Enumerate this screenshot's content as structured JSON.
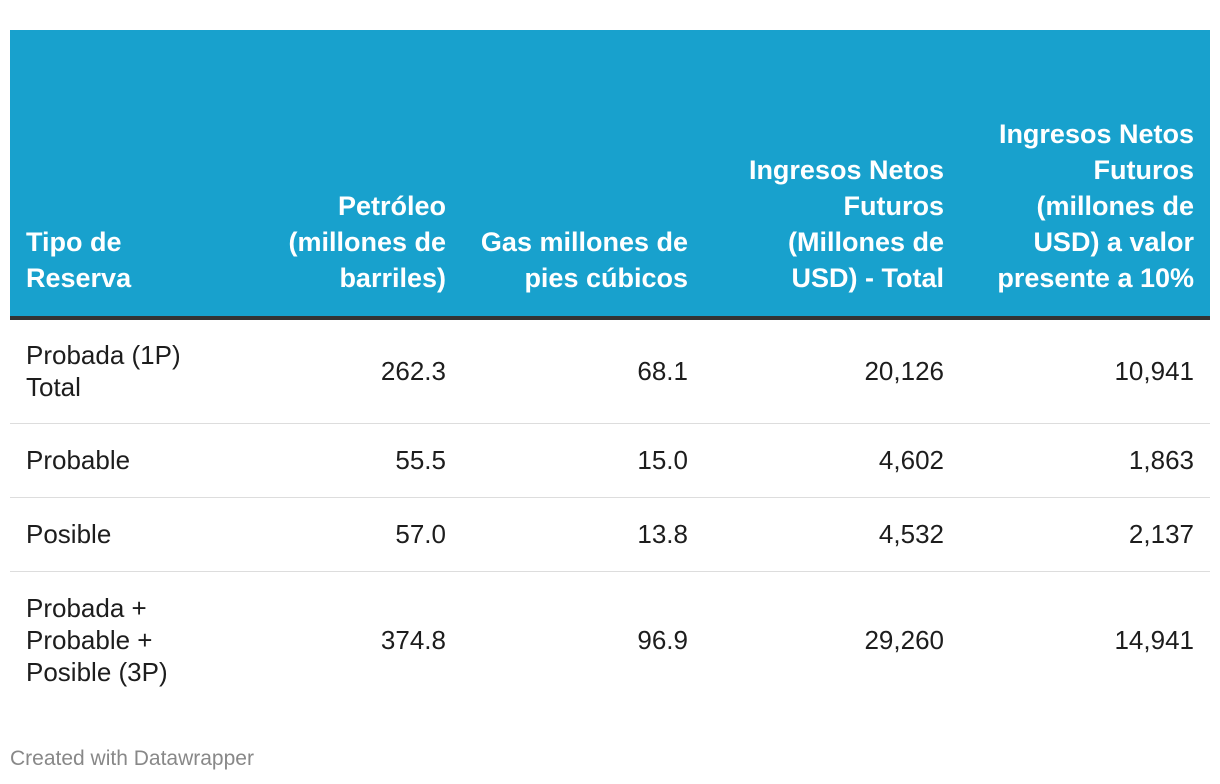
{
  "chart_data": {
    "type": "table",
    "columns": [
      "Tipo de Reserva",
      "Petróleo (millones de barriles)",
      "Gas millones de pies cúbicos",
      "Ingresos Netos Futuros (Millones de USD) - Total",
      "Ingresos Netos Futuros (millones de USD) a valor presente a 10%"
    ],
    "rows": [
      [
        "Probada (1P) Total",
        "262.3",
        "68.1",
        "20,126",
        "10,941"
      ],
      [
        "Probable",
        "55.5",
        "15.0",
        "4,602",
        "1,863"
      ],
      [
        "Posible",
        "57.0",
        "13.8",
        "4,532",
        "2,137"
      ],
      [
        "Probada + Probable + Posible (3P)",
        "374.8",
        "96.9",
        "29,260",
        "14,941"
      ]
    ],
    "colors": {
      "header_background": "#18a1cd",
      "header_text": "#ffffff",
      "header_rule": "#333333",
      "row_divider": "#dddddd"
    }
  },
  "footer": {
    "credit": "Created with Datawrapper"
  }
}
